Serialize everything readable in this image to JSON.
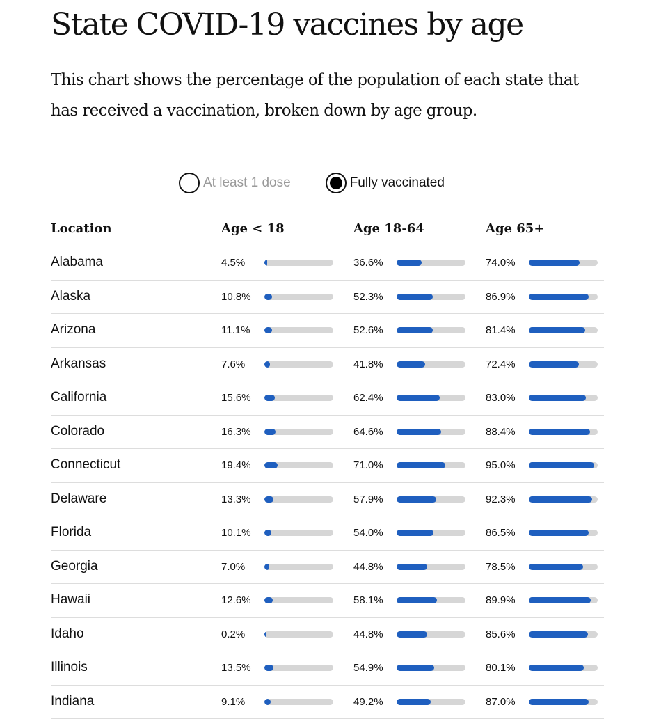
{
  "title": "State COVID-19 vaccines by age",
  "subtitle": "This chart shows the percentage of the population of each state that has received a vaccination, broken down by age group.",
  "toggle": {
    "options": [
      {
        "label": "At least 1 dose",
        "selected": false
      },
      {
        "label": "Fully vaccinated",
        "selected": true
      }
    ]
  },
  "colors": {
    "bar_fill": "#1f5fbf",
    "bar_track": "#d6d6d6"
  },
  "chart_data": {
    "type": "table",
    "title": "State COVID-19 vaccines by age",
    "columns": [
      "Location",
      "Age < 18",
      "Age 18-64",
      "Age 65+"
    ],
    "unit": "%",
    "ylim": [
      0,
      100
    ],
    "rows": [
      {
        "location": "Alabama",
        "values": [
          4.5,
          36.6,
          74.0
        ],
        "labels": [
          "4.5%",
          "36.6%",
          "74.0%"
        ]
      },
      {
        "location": "Alaska",
        "values": [
          10.8,
          52.3,
          86.9
        ],
        "labels": [
          "10.8%",
          "52.3%",
          "86.9%"
        ]
      },
      {
        "location": "Arizona",
        "values": [
          11.1,
          52.6,
          81.4
        ],
        "labels": [
          "11.1%",
          "52.6%",
          "81.4%"
        ]
      },
      {
        "location": "Arkansas",
        "values": [
          7.6,
          41.8,
          72.4
        ],
        "labels": [
          "7.6%",
          "41.8%",
          "72.4%"
        ]
      },
      {
        "location": "California",
        "values": [
          15.6,
          62.4,
          83.0
        ],
        "labels": [
          "15.6%",
          "62.4%",
          "83.0%"
        ]
      },
      {
        "location": "Colorado",
        "values": [
          16.3,
          64.6,
          88.4
        ],
        "labels": [
          "16.3%",
          "64.6%",
          "88.4%"
        ]
      },
      {
        "location": "Connecticut",
        "values": [
          19.4,
          71.0,
          95.0
        ],
        "labels": [
          "19.4%",
          "71.0%",
          "95.0%"
        ]
      },
      {
        "location": "Delaware",
        "values": [
          13.3,
          57.9,
          92.3
        ],
        "labels": [
          "13.3%",
          "57.9%",
          "92.3%"
        ]
      },
      {
        "location": "Florida",
        "values": [
          10.1,
          54.0,
          86.5
        ],
        "labels": [
          "10.1%",
          "54.0%",
          "86.5%"
        ]
      },
      {
        "location": "Georgia",
        "values": [
          7.0,
          44.8,
          78.5
        ],
        "labels": [
          "7.0%",
          "44.8%",
          "78.5%"
        ]
      },
      {
        "location": "Hawaii",
        "values": [
          12.6,
          58.1,
          89.9
        ],
        "labels": [
          "12.6%",
          "58.1%",
          "89.9%"
        ]
      },
      {
        "location": "Idaho",
        "values": [
          0.2,
          44.8,
          85.6
        ],
        "labels": [
          "0.2%",
          "44.8%",
          "85.6%"
        ]
      },
      {
        "location": "Illinois",
        "values": [
          13.5,
          54.9,
          80.1
        ],
        "labels": [
          "13.5%",
          "54.9%",
          "80.1%"
        ]
      },
      {
        "location": "Indiana",
        "values": [
          9.1,
          49.2,
          87.0
        ],
        "labels": [
          "9.1%",
          "49.2%",
          "87.0%"
        ]
      }
    ]
  }
}
